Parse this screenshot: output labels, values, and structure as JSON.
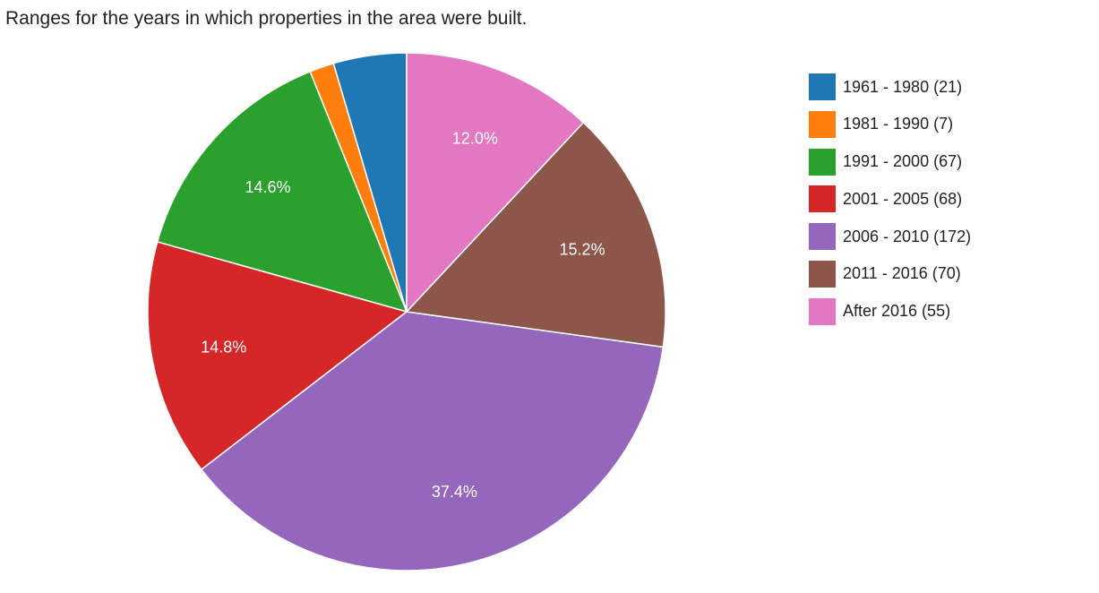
{
  "chart_data": {
    "type": "pie",
    "title": "Ranges for the years in which properties in the area were built.",
    "slices": [
      {
        "label": "1961 - 1980",
        "value": 21,
        "color": "#1f77b4",
        "legend": "1961 - 1980 (21)",
        "percent_label": ""
      },
      {
        "label": "1981 - 1990",
        "value": 7,
        "color": "#ff7f0e",
        "legend": "1981 - 1990 (7)",
        "percent_label": ""
      },
      {
        "label": "1991 - 2000",
        "value": 67,
        "color": "#2ca02c",
        "legend": "1991 - 2000 (67)",
        "percent_label": "14.6%"
      },
      {
        "label": "2001 - 2005",
        "value": 68,
        "color": "#d62728",
        "legend": "2001 - 2005 (68)",
        "percent_label": "14.8%"
      },
      {
        "label": "2006 - 2010",
        "value": 172,
        "color": "#9467bd",
        "legend": "2006 - 2010 (172)",
        "percent_label": "37.4%"
      },
      {
        "label": "2011 - 2016",
        "value": 70,
        "color": "#8c564b",
        "legend": "2011 - 2016 (70)",
        "percent_label": "15.2%"
      },
      {
        "label": "After 2016",
        "value": 55,
        "color": "#e377c2",
        "legend": "After 2016 (55)",
        "percent_label": "12.0%"
      }
    ],
    "legend_position": "right"
  }
}
